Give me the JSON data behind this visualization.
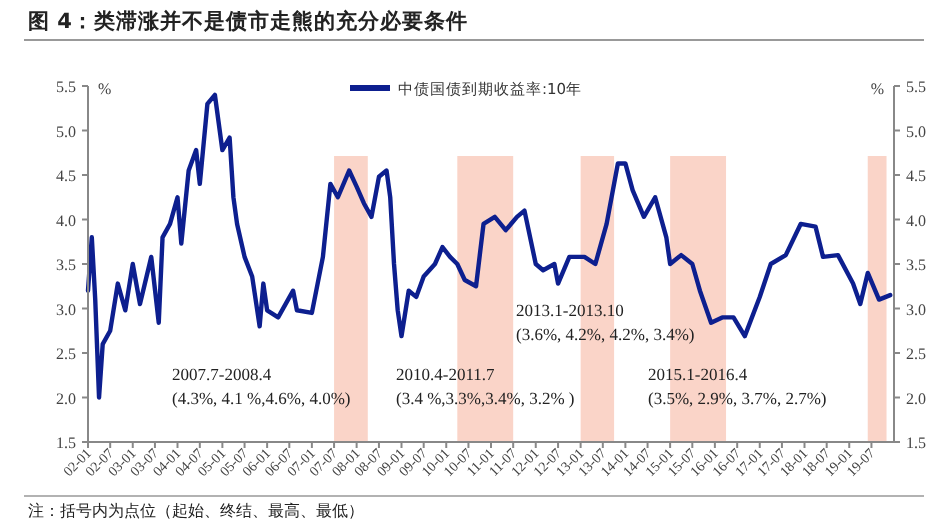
{
  "chart_data": {
    "type": "line",
    "title": "图 4：类滞涨并不是债市走熊的充分必要条件",
    "ylabel": "%",
    "y2label": "%",
    "legend": "top",
    "grid": false,
    "xlim": [
      "2002-01",
      "2020-01"
    ],
    "xticks": [
      {
        "value": "2002-01",
        "label": "02-01"
      },
      {
        "value": "2002-07",
        "label": "02-07"
      },
      {
        "value": "2003-01",
        "label": "03-01"
      },
      {
        "value": "2003-07",
        "label": "03-07"
      },
      {
        "value": "2004-01",
        "label": "04-01"
      },
      {
        "value": "2004-07",
        "label": "04-07"
      },
      {
        "value": "2005-01",
        "label": "05-01"
      },
      {
        "value": "2005-07",
        "label": "05-07"
      },
      {
        "value": "2006-01",
        "label": "06-01"
      },
      {
        "value": "2006-07",
        "label": "06-07"
      },
      {
        "value": "2007-01",
        "label": "07-01"
      },
      {
        "value": "2007-07",
        "label": "07-07"
      },
      {
        "value": "2008-01",
        "label": "08-01"
      },
      {
        "value": "2008-07",
        "label": "08-07"
      },
      {
        "value": "2009-01",
        "label": "09-01"
      },
      {
        "value": "2009-07",
        "label": "09-07"
      },
      {
        "value": "2010-01",
        "label": "10-01"
      },
      {
        "value": "2010-07",
        "label": "10-07"
      },
      {
        "value": "2011-01",
        "label": "11-01"
      },
      {
        "value": "2011-07",
        "label": "11-07"
      },
      {
        "value": "2012-01",
        "label": "12-01"
      },
      {
        "value": "2012-07",
        "label": "12-07"
      },
      {
        "value": "2013-01",
        "label": "13-01"
      },
      {
        "value": "2013-07",
        "label": "13-07"
      },
      {
        "value": "2014-01",
        "label": "14-01"
      },
      {
        "value": "2014-07",
        "label": "14-07"
      },
      {
        "value": "2015-01",
        "label": "15-01"
      },
      {
        "value": "2015-07",
        "label": "15-07"
      },
      {
        "value": "2016-01",
        "label": "16-01"
      },
      {
        "value": "2016-07",
        "label": "16-07"
      },
      {
        "value": "2017-01",
        "label": "17-01"
      },
      {
        "value": "2017-07",
        "label": "17-07"
      },
      {
        "value": "2018-01",
        "label": "18-01"
      },
      {
        "value": "2018-07",
        "label": "18-07"
      },
      {
        "value": "2019-01",
        "label": "19-01"
      },
      {
        "value": "2019-07",
        "label": "19-07"
      }
    ],
    "ylim": [
      1.5,
      5.5
    ],
    "yticks": [
      {
        "value": 1.5,
        "label": "1.5"
      },
      {
        "value": 2,
        "label": "2.0"
      },
      {
        "value": 2.5,
        "label": "2.5"
      },
      {
        "value": 3,
        "label": "3.0"
      },
      {
        "value": 3.5,
        "label": "3.5"
      },
      {
        "value": 4,
        "label": "4.0"
      },
      {
        "value": 4.5,
        "label": "4.5"
      },
      {
        "value": 5,
        "label": "5.0"
      },
      {
        "value": 5.5,
        "label": "5.5"
      }
    ],
    "y2lim": [
      1.5,
      5.5
    ],
    "y2ticks": [
      {
        "value": 1.5,
        "label": "1.5"
      },
      {
        "value": 2,
        "label": "2.0"
      },
      {
        "value": 2.5,
        "label": "2.5"
      },
      {
        "value": 3,
        "label": "3.0"
      },
      {
        "value": 3.5,
        "label": "3.5"
      },
      {
        "value": 4,
        "label": "4.0"
      },
      {
        "value": 4.5,
        "label": "4.5"
      },
      {
        "value": 5,
        "label": "5.0"
      },
      {
        "value": 5.5,
        "label": "5.5"
      }
    ],
    "bands": [
      {
        "axis": "x",
        "from": "2007-07",
        "to": "2008-04",
        "color": "#f7b7a3"
      },
      {
        "axis": "x",
        "from": "2010-04",
        "to": "2011-07",
        "color": "#f7b7a3"
      },
      {
        "axis": "x",
        "from": "2013-01",
        "to": "2013-10",
        "color": "#f7b7a3"
      },
      {
        "axis": "x",
        "from": "2015-01",
        "to": "2016-04",
        "color": "#f7b7a3"
      },
      {
        "axis": "x",
        "from": "2019-06",
        "to": "2019-11",
        "color": "#f7b7a3"
      }
    ],
    "annotations": [
      "2007.7-2008.4",
      "(4.3%, 4.1 %,4.6%, 4.0%)",
      "2010.4-2011.7",
      "(3.4 %,3.3%,3.4%, 3.2% )",
      "2013.1-2013.10",
      "(3.6%, 4.2%, 4.2%, 3.4%)",
      "2015.1-2016.4",
      "(3.5%, 2.9%, 3.7%, 2.7%)",
      "注：括号内为点位（起始、终结、最高、最低）"
    ],
    "series": [
      {
        "name": "中债国债到期收益率:10年",
        "color": "#0d1f8f",
        "x": [
          "2002-01",
          "2002-02",
          "2002-03",
          "2002-04",
          "2002-05",
          "2002-07",
          "2002-09",
          "2002-11",
          "2003-01",
          "2003-03",
          "2003-06",
          "2003-08",
          "2003-09",
          "2003-11",
          "2004-01",
          "2004-02",
          "2004-04",
          "2004-06",
          "2004-07",
          "2004-09",
          "2004-11",
          "2005-01",
          "2005-03",
          "2005-04",
          "2005-05",
          "2005-07",
          "2005-09",
          "2005-11",
          "2005-12",
          "2006-01",
          "2006-04",
          "2006-08",
          "2006-09",
          "2007-01",
          "2007-04",
          "2007-06",
          "2007-08",
          "2007-11",
          "2008-01",
          "2008-03",
          "2008-05",
          "2008-07",
          "2008-09",
          "2008-10",
          "2008-11",
          "2008-12",
          "2009-01",
          "2009-03",
          "2009-05",
          "2009-07",
          "2009-10",
          "2009-12",
          "2010-02",
          "2010-04",
          "2010-06",
          "2010-09",
          "2010-11",
          "2011-02",
          "2011-05",
          "2011-08",
          "2011-10",
          "2012-01",
          "2012-03",
          "2012-06",
          "2012-07",
          "2012-10",
          "2013-02",
          "2013-05",
          "2013-08",
          "2013-11",
          "2014-01",
          "2014-03",
          "2014-06",
          "2014-09",
          "2014-12",
          "2015-01",
          "2015-04",
          "2015-07",
          "2015-09",
          "2015-12",
          "2016-03",
          "2016-06",
          "2016-09",
          "2017-01",
          "2017-04",
          "2017-08",
          "2017-12",
          "2018-04",
          "2018-06",
          "2018-10",
          "2019-02",
          "2019-04",
          "2019-06",
          "2019-09",
          "2019-12"
        ],
        "values": [
          3.2,
          3.8,
          3.1,
          2.0,
          2.6,
          2.75,
          3.28,
          2.98,
          3.5,
          3.05,
          3.58,
          2.84,
          3.8,
          3.95,
          4.25,
          3.73,
          4.55,
          4.78,
          4.4,
          5.3,
          5.4,
          4.78,
          4.92,
          4.25,
          3.95,
          3.58,
          3.36,
          2.8,
          3.28,
          2.98,
          2.9,
          3.2,
          2.98,
          2.95,
          3.58,
          4.4,
          4.25,
          4.55,
          4.37,
          4.18,
          4.03,
          4.48,
          4.55,
          4.25,
          3.5,
          2.98,
          2.69,
          3.2,
          3.13,
          3.36,
          3.5,
          3.69,
          3.58,
          3.5,
          3.32,
          3.25,
          3.95,
          4.03,
          3.88,
          4.03,
          4.1,
          3.5,
          3.43,
          3.5,
          3.28,
          3.58,
          3.58,
          3.5,
          3.95,
          4.63,
          4.63,
          4.33,
          4.03,
          4.25,
          3.8,
          3.5,
          3.6,
          3.5,
          3.2,
          2.84,
          2.9,
          2.9,
          2.69,
          3.13,
          3.5,
          3.6,
          3.95,
          3.92,
          3.58,
          3.6,
          3.28,
          3.05,
          3.4,
          3.1,
          3.15
        ]
      }
    ]
  }
}
